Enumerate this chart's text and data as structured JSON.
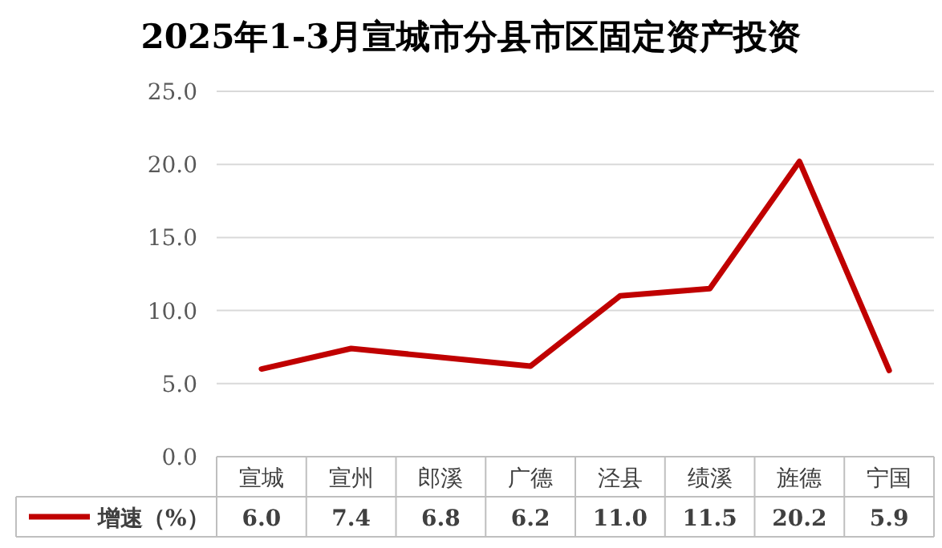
{
  "chart_data": {
    "type": "line",
    "title": "2025年1-3月宣城市分县市区固定资产投资",
    "categories": [
      "宣城",
      "宣州",
      "郎溪",
      "广德",
      "泾县",
      "绩溪",
      "旌德",
      "宁国"
    ],
    "series": [
      {
        "name": "增速（%）",
        "color": "#c00000",
        "values": [
          6.0,
          7.4,
          6.8,
          6.2,
          11.0,
          11.5,
          20.2,
          5.9
        ],
        "value_labels": [
          "6.0",
          "7.4",
          "6.8",
          "6.2",
          "11.0",
          "11.5",
          "20.2",
          "5.9"
        ]
      }
    ],
    "ylim": [
      0,
      25
    ],
    "yticks": [
      {
        "value": 0,
        "label": "0.0"
      },
      {
        "value": 5,
        "label": "5.0"
      },
      {
        "value": 10,
        "label": "10.0"
      },
      {
        "value": 15,
        "label": "15.0"
      },
      {
        "value": 20,
        "label": "20.0"
      },
      {
        "value": 25,
        "label": "25.0"
      }
    ],
    "grid": "y",
    "legend": "bottom",
    "line_style": "solid",
    "marker": "none"
  }
}
